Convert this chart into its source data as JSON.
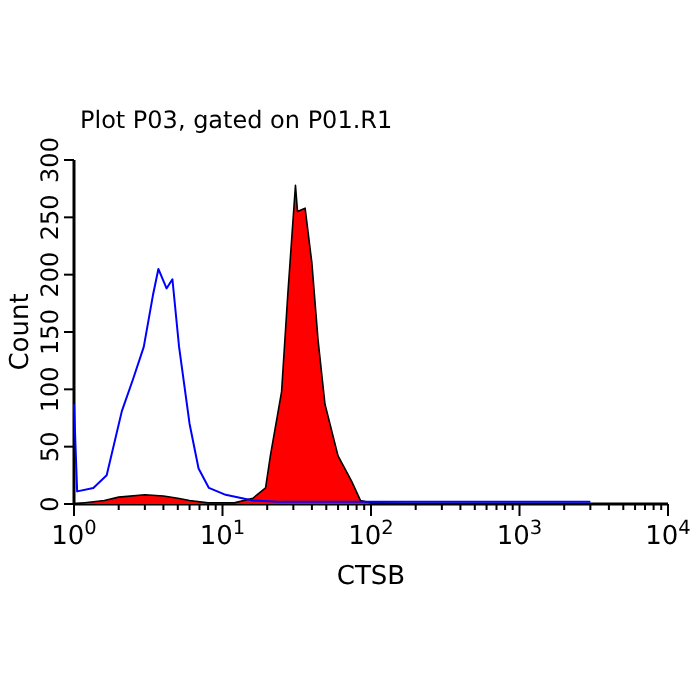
{
  "chart_data": {
    "type": "line",
    "title": "Plot P03, gated on P01.R1",
    "xlabel": "CTSB",
    "ylabel": "Count",
    "log": "x",
    "xlim": [
      1,
      10000
    ],
    "ylim": [
      0,
      300
    ],
    "xticks": [
      {
        "value": 1,
        "label": "10$^{0}$"
      },
      {
        "value": 2,
        "label": null
      },
      {
        "value": 3,
        "label": null
      },
      {
        "value": 4,
        "label": null
      },
      {
        "value": 5,
        "label": null
      },
      {
        "value": 6,
        "label": null
      },
      {
        "value": 7,
        "label": null
      },
      {
        "value": 8,
        "label": null
      },
      {
        "value": 9,
        "label": null
      },
      {
        "value": 10,
        "label": "10$^{1}$"
      },
      {
        "value": 20,
        "label": null
      },
      {
        "value": 30,
        "label": null
      },
      {
        "value": 40,
        "label": null
      },
      {
        "value": 50,
        "label": null
      },
      {
        "value": 60,
        "label": null
      },
      {
        "value": 70,
        "label": null
      },
      {
        "value": 80,
        "label": null
      },
      {
        "value": 90,
        "label": null
      },
      {
        "value": 100,
        "label": "10$^{2}$"
      },
      {
        "value": 200,
        "label": null
      },
      {
        "value": 300,
        "label": null
      },
      {
        "value": 400,
        "label": null
      },
      {
        "value": 500,
        "label": null
      },
      {
        "value": 600,
        "label": null
      },
      {
        "value": 700,
        "label": null
      },
      {
        "value": 800,
        "label": null
      },
      {
        "value": 900,
        "label": null
      },
      {
        "value": 1000,
        "label": "10$^{3}$"
      },
      {
        "value": 2000,
        "label": null
      },
      {
        "value": 3000,
        "label": null
      },
      {
        "value": 4000,
        "label": null
      },
      {
        "value": 5000,
        "label": null
      },
      {
        "value": 6000,
        "label": null
      },
      {
        "value": 7000,
        "label": null
      },
      {
        "value": 8000,
        "label": null
      },
      {
        "value": 9000,
        "label": null
      },
      {
        "value": 10000,
        "label": "10$^{4}$"
      }
    ],
    "yticks": [
      0,
      50,
      100,
      150,
      200,
      250,
      300
    ],
    "grid": false,
    "series": [
      {
        "type": "area",
        "color": "#ff0000",
        "x": [
          1,
          1.6,
          2,
          3,
          4,
          5,
          6,
          8,
          12,
          16,
          19.5,
          21,
          25,
          27.5,
          31,
          32,
          36,
          40,
          44,
          49,
          60,
          74,
          85,
          100,
          200,
          10000
        ],
        "values": [
          0,
          3,
          6,
          8,
          7,
          5,
          3,
          1,
          1,
          5,
          14,
          42,
          98,
          182,
          278,
          255,
          258,
          210,
          143,
          87,
          42,
          20,
          3,
          1,
          0,
          0
        ]
      },
      {
        "color": "#0000ff",
        "x": [
          1,
          1.05,
          1.35,
          1.66,
          2.1,
          2.5,
          2.95,
          3.4,
          3.7,
          4.2,
          4.6,
          5.1,
          6,
          6.9,
          8.1,
          10.5,
          16,
          24,
          100,
          1000,
          3000
        ],
        "values": [
          87,
          11,
          14,
          25,
          81,
          109,
          137,
          182,
          205,
          188,
          196,
          137,
          70,
          31,
          14,
          8,
          3,
          2,
          2,
          2,
          2
        ]
      }
    ]
  }
}
